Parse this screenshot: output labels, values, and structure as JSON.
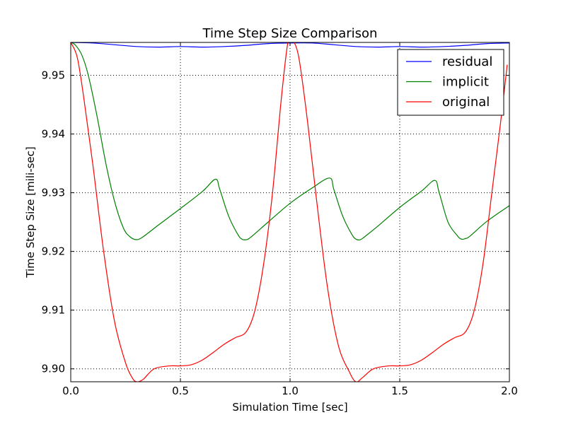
{
  "chart_data": {
    "type": "line",
    "title": "Time Step Size Comparison",
    "xlabel": "Simulation Time [sec]",
    "ylabel": "Time Step Size [mili-sec]",
    "xlim": [
      0.0,
      2.0
    ],
    "ylim": [
      9.8978,
      9.9556
    ],
    "xticks": [
      0.0,
      0.5,
      1.0,
      1.5,
      2.0
    ],
    "xtick_labels": [
      "0.0",
      "0.5",
      "1.0",
      "1.5",
      "2.0"
    ],
    "yticks": [
      9.9,
      9.91,
      9.92,
      9.93,
      9.94,
      9.95
    ],
    "ytick_labels": [
      "9.90",
      "9.91",
      "9.92",
      "9.93",
      "9.94",
      "9.95"
    ],
    "grid": true,
    "legend_position": "top-right",
    "series": [
      {
        "name": "residual",
        "color": "#0000ff",
        "points": [
          [
            0.0,
            9.9556
          ],
          [
            0.1,
            9.9555
          ],
          [
            0.2,
            9.9552
          ],
          [
            0.3,
            9.9549
          ],
          [
            0.4,
            9.9548
          ],
          [
            0.5,
            9.9549
          ],
          [
            0.6,
            9.9548
          ],
          [
            0.7,
            9.9549
          ],
          [
            0.8,
            9.9551
          ],
          [
            0.9,
            9.9554
          ],
          [
            1.0,
            9.9555
          ],
          [
            1.1,
            9.9555
          ],
          [
            1.2,
            9.9552
          ],
          [
            1.3,
            9.9549
          ],
          [
            1.4,
            9.9548
          ],
          [
            1.5,
            9.9549
          ],
          [
            1.6,
            9.9548
          ],
          [
            1.7,
            9.9549
          ],
          [
            1.8,
            9.9551
          ],
          [
            1.9,
            9.9554
          ],
          [
            2.0,
            9.9555
          ]
        ]
      },
      {
        "name": "implicit",
        "color": "#008000",
        "points": [
          [
            0.0,
            9.9556
          ],
          [
            0.02,
            9.9552
          ],
          [
            0.05,
            9.9535
          ],
          [
            0.08,
            9.95
          ],
          [
            0.12,
            9.943
          ],
          [
            0.16,
            9.935
          ],
          [
            0.2,
            9.9285
          ],
          [
            0.24,
            9.924
          ],
          [
            0.27,
            9.9225
          ],
          [
            0.3,
            9.922
          ],
          [
            0.33,
            9.9225
          ],
          [
            0.4,
            9.9245
          ],
          [
            0.5,
            9.9273
          ],
          [
            0.6,
            9.9302
          ],
          [
            0.66,
            9.9323
          ],
          [
            0.68,
            9.9305
          ],
          [
            0.72,
            9.926
          ],
          [
            0.76,
            9.923
          ],
          [
            0.78,
            9.9221
          ],
          [
            0.8,
            9.922
          ],
          [
            0.82,
            9.9224
          ],
          [
            0.9,
            9.925
          ],
          [
            1.0,
            9.9282
          ],
          [
            1.1,
            9.9308
          ],
          [
            1.18,
            9.9325
          ],
          [
            1.2,
            9.9305
          ],
          [
            1.24,
            9.926
          ],
          [
            1.28,
            9.923
          ],
          [
            1.3,
            9.9221
          ],
          [
            1.32,
            9.922
          ],
          [
            1.34,
            9.9225
          ],
          [
            1.4,
            9.9243
          ],
          [
            1.5,
            9.9275
          ],
          [
            1.6,
            9.9303
          ],
          [
            1.66,
            9.9321
          ],
          [
            1.68,
            9.93
          ],
          [
            1.72,
            9.925
          ],
          [
            1.76,
            9.9228
          ],
          [
            1.78,
            9.9221
          ],
          [
            1.8,
            9.9222
          ],
          [
            1.82,
            9.9226
          ],
          [
            1.9,
            9.9252
          ],
          [
            2.0,
            9.9278
          ]
        ]
      },
      {
        "name": "original",
        "color": "#ff0000",
        "points": [
          [
            0.0,
            9.9556
          ],
          [
            0.03,
            9.953
          ],
          [
            0.06,
            9.946
          ],
          [
            0.1,
            9.935
          ],
          [
            0.15,
            9.92
          ],
          [
            0.2,
            9.908
          ],
          [
            0.25,
            9.901
          ],
          [
            0.28,
            9.8985
          ],
          [
            0.3,
            9.8978
          ],
          [
            0.33,
            9.8982
          ],
          [
            0.38,
            9.9
          ],
          [
            0.45,
            9.9005
          ],
          [
            0.5,
            9.9005
          ],
          [
            0.55,
            9.9007
          ],
          [
            0.6,
            9.9015
          ],
          [
            0.65,
            9.9028
          ],
          [
            0.7,
            9.9042
          ],
          [
            0.75,
            9.9053
          ],
          [
            0.8,
            9.9063
          ],
          [
            0.84,
            9.91
          ],
          [
            0.88,
            9.918
          ],
          [
            0.92,
            9.93
          ],
          [
            0.96,
            9.946
          ],
          [
            0.99,
            9.9556
          ],
          [
            1.01,
            9.956
          ],
          [
            1.04,
            9.953
          ],
          [
            1.08,
            9.942
          ],
          [
            1.12,
            9.929
          ],
          [
            1.17,
            9.914
          ],
          [
            1.22,
            9.904
          ],
          [
            1.27,
            9.8995
          ],
          [
            1.3,
            9.8978
          ],
          [
            1.33,
            9.8985
          ],
          [
            1.38,
            9.9
          ],
          [
            1.45,
            9.9005
          ],
          [
            1.5,
            9.9005
          ],
          [
            1.55,
            9.9007
          ],
          [
            1.6,
            9.9015
          ],
          [
            1.65,
            9.9028
          ],
          [
            1.7,
            9.9042
          ],
          [
            1.75,
            9.9053
          ],
          [
            1.8,
            9.9063
          ],
          [
            1.84,
            9.91
          ],
          [
            1.88,
            9.918
          ],
          [
            1.92,
            9.93
          ],
          [
            1.96,
            9.942
          ],
          [
            1.99,
            9.9518
          ]
        ]
      }
    ]
  }
}
